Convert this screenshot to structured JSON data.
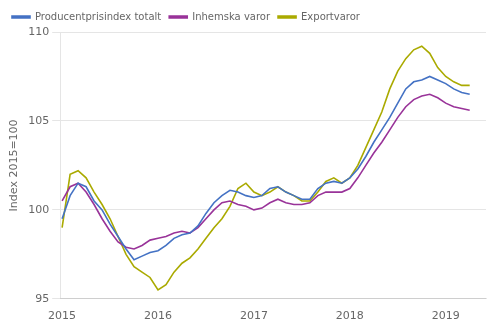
{
  "chart_data": {
    "type": "line",
    "ylabel": "Index 2015=100",
    "x": [
      2015,
      2015.0833333333333,
      2015.1666666666667,
      2015.25,
      2015.3333333333333,
      2015.4166666666667,
      2015.5,
      2015.5833333333333,
      2015.6666666666667,
      2015.75,
      2015.8333333333333,
      2015.9166666666667,
      2016,
      2016.0833333333333,
      2016.1666666666667,
      2016.25,
      2016.3333333333333,
      2016.4166666666667,
      2016.5,
      2016.5833333333333,
      2016.6666666666667,
      2016.75,
      2016.8333333333333,
      2016.9166666666667,
      2017,
      2017.0833333333333,
      2017.1666666666667,
      2017.25,
      2017.3333333333333,
      2017.4166666666667,
      2017.5,
      2017.5833333333333,
      2017.6666666666667,
      2017.75,
      2017.8333333333333,
      2017.9166666666667,
      2018,
      2018.0833333333333,
      2018.1666666666667,
      2018.25,
      2018.3333333333333,
      2018.4166666666667,
      2018.5,
      2018.5833333333333,
      2018.6666666666667,
      2018.75,
      2018.8333333333333,
      2018.9166666666667,
      2019,
      2019.0833333333333,
      2019.1666666666667,
      2019.25
    ],
    "series": [
      {
        "name": "Producentprisindex totalt",
        "color": "#4472C4",
        "values": [
          99.5,
          100.8,
          101.5,
          101.3,
          100.5,
          100.0,
          99.2,
          98.5,
          97.8,
          97.2,
          97.4,
          97.6,
          97.7,
          98.0,
          98.4,
          98.6,
          98.7,
          99.1,
          99.8,
          100.4,
          100.8,
          101.1,
          101.0,
          100.8,
          100.7,
          100.8,
          101.2,
          101.3,
          101.0,
          100.8,
          100.6,
          100.6,
          101.2,
          101.5,
          101.6,
          101.5,
          101.8,
          102.3,
          103.0,
          103.8,
          104.5,
          105.2,
          106.0,
          106.8,
          107.2,
          107.3,
          107.5,
          107.3,
          107.1,
          106.8,
          106.6,
          106.5
        ]
      },
      {
        "name": "Inhemska varor",
        "color": "#993399",
        "values": [
          100.5,
          101.3,
          101.5,
          101.0,
          100.3,
          99.5,
          98.8,
          98.2,
          97.9,
          97.8,
          98.0,
          98.3,
          98.4,
          98.5,
          98.7,
          98.8,
          98.7,
          99.0,
          99.5,
          100.0,
          100.4,
          100.5,
          100.3,
          100.2,
          100.0,
          100.1,
          100.4,
          100.6,
          100.4,
          100.3,
          100.3,
          100.4,
          100.8,
          101.0,
          101.0,
          101.0,
          101.2,
          101.8,
          102.5,
          103.2,
          103.8,
          104.5,
          105.2,
          105.8,
          106.2,
          106.4,
          106.5,
          106.3,
          106.0,
          105.8,
          105.7,
          105.6
        ]
      },
      {
        "name": "Exportvaror",
        "color": "#AAAA00",
        "values": [
          99.0,
          102.0,
          102.2,
          101.8,
          101.0,
          100.3,
          99.5,
          98.5,
          97.5,
          96.8,
          96.5,
          96.2,
          95.5,
          95.8,
          96.5,
          97.0,
          97.3,
          97.8,
          98.4,
          99.0,
          99.5,
          100.2,
          101.2,
          101.5,
          101.0,
          100.8,
          101.0,
          101.3,
          101.0,
          100.8,
          100.5,
          100.5,
          101.0,
          101.6,
          101.8,
          101.5,
          101.8,
          102.5,
          103.5,
          104.5,
          105.5,
          106.8,
          107.8,
          108.5,
          109.0,
          109.2,
          108.8,
          108.0,
          107.5,
          107.2,
          107.0,
          107.0
        ]
      }
    ],
    "xlim": [
      2014.98,
      2019.42
    ],
    "xticks": [
      2015,
      2016,
      2017,
      2018,
      2019
    ],
    "ylim": [
      95,
      110
    ],
    "yticks": [
      95,
      100,
      105,
      110
    ],
    "grid": "y",
    "legend": "upper left"
  }
}
